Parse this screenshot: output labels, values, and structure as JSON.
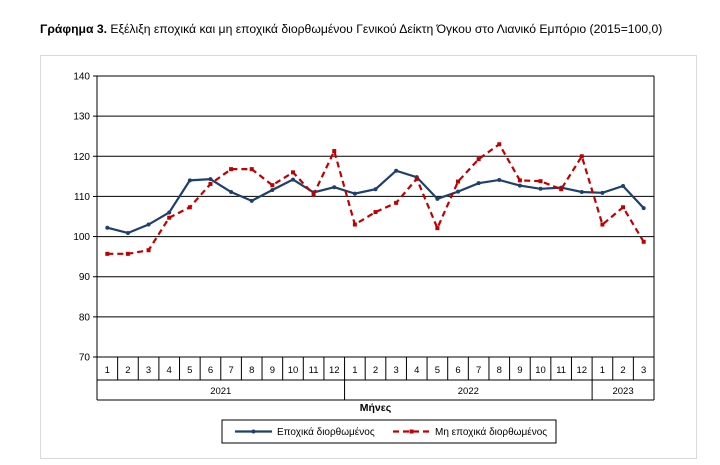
{
  "title_bold": "Γράφημα 3.",
  "title_rest": " Εξέλιξη εποχικά και μη εποχικά διορθωμένου Γενικού Δείκτη Όγκου στο Λιανικό Εμπόριο (2015=100,0)",
  "chart_data": {
    "type": "line",
    "title": "Γράφημα 3. Εξέλιξη εποχικά και μη εποχικά διορθωμένου Γενικού Δείκτη Όγκου στο Λιανικό Εμπόριο (2015=100,0)",
    "xlabel": "Μήνες",
    "ylabel": "",
    "ylim": [
      70,
      140
    ],
    "yticks": [
      "70",
      "80",
      "90",
      "100",
      "110",
      "120",
      "130",
      "140"
    ],
    "months": [
      "1",
      "2",
      "3",
      "4",
      "5",
      "6",
      "7",
      "8",
      "9",
      "10",
      "11",
      "12",
      "1",
      "2",
      "3",
      "4",
      "5",
      "6",
      "7",
      "8",
      "9",
      "10",
      "11",
      "12",
      "1",
      "2",
      "3"
    ],
    "years": [
      {
        "label": "2021",
        "count": 12
      },
      {
        "label": "2022",
        "count": 12
      },
      {
        "label": "2023",
        "count": 3
      }
    ],
    "grid": true,
    "legend_position": "bottom",
    "series": [
      {
        "name": "Εποχικά διορθωμένος",
        "color": "#1f3f6e",
        "dash": false,
        "values": [
          102.2,
          100.9,
          103.0,
          106.0,
          114.0,
          114.3,
          111.1,
          108.9,
          111.6,
          114.2,
          111.0,
          112.3,
          110.7,
          111.8,
          116.4,
          114.8,
          109.4,
          111.2,
          113.3,
          114.1,
          112.7,
          111.9,
          112.2,
          111.1,
          110.9,
          112.6,
          107.1
        ]
      },
      {
        "name": "Μη εποχικά διορθωμένος",
        "color": "#c00000",
        "dash": true,
        "values": [
          95.7,
          95.7,
          96.6,
          104.7,
          107.3,
          113.1,
          116.8,
          116.8,
          112.8,
          116.0,
          110.5,
          121.3,
          103.0,
          106.1,
          108.4,
          114.4,
          102.1,
          113.7,
          119.3,
          123.0,
          114.0,
          113.8,
          111.8,
          120.0,
          103.0,
          107.3,
          98.7
        ]
      }
    ]
  }
}
